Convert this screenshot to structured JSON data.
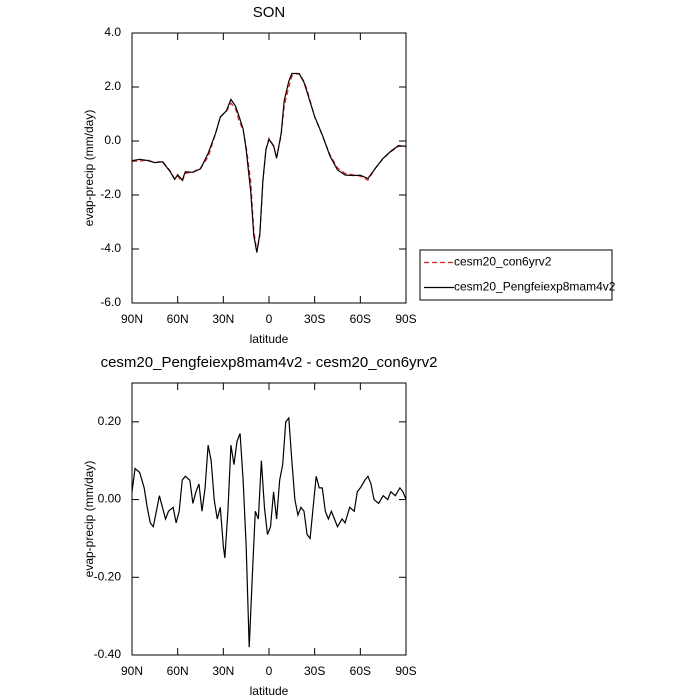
{
  "chart_data": [
    {
      "type": "line",
      "title": "SON",
      "xlabel": "latitude",
      "ylabel": "evap-precip (mm/day)",
      "x": [
        90,
        85,
        80,
        75,
        70,
        65,
        62,
        60,
        57,
        55,
        50,
        45,
        40,
        35,
        32,
        28,
        25,
        22,
        20,
        17,
        15,
        12,
        10,
        8,
        6,
        4,
        2,
        0,
        -3,
        -5,
        -8,
        -10,
        -13,
        -15,
        -18,
        -20,
        -23,
        -25,
        -30,
        -35,
        -40,
        -45,
        -50,
        -55,
        -60,
        -65,
        -70,
        -75,
        -80,
        -85,
        -90
      ],
      "series": [
        {
          "name": "cesm20_con6yrv2",
          "color": "#e41a1c",
          "line_style": "dashed",
          "values": [
            -0.75,
            -0.75,
            -0.7,
            -0.8,
            -0.75,
            -1.1,
            -1.4,
            -1.3,
            -1.5,
            -1.2,
            -1.15,
            -1.0,
            -0.6,
            0.3,
            0.9,
            1.1,
            1.4,
            1.2,
            0.8,
            0.4,
            -0.2,
            -1.5,
            -3.3,
            -4.1,
            -3.5,
            -1.5,
            -0.3,
            0.1,
            -0.2,
            -0.6,
            0.2,
            1.3,
            2.0,
            2.4,
            2.5,
            2.5,
            2.2,
            1.9,
            0.9,
            0.2,
            -0.5,
            -1.0,
            -1.2,
            -1.25,
            -1.3,
            -1.45,
            -1.0,
            -0.65,
            -0.4,
            -0.2,
            -0.2
          ]
        },
        {
          "name": "cesm20_Pengfeiexp8mam4v2",
          "color": "#000000",
          "line_style": "solid",
          "values": [
            -0.73,
            -0.68,
            -0.72,
            -0.8,
            -0.77,
            -1.13,
            -1.42,
            -1.25,
            -1.45,
            -1.14,
            -1.16,
            -1.03,
            -0.46,
            0.3,
            0.88,
            1.12,
            1.54,
            1.29,
            0.97,
            0.45,
            -0.32,
            -1.88,
            -3.5,
            -4.13,
            -3.42,
            -1.45,
            -0.32,
            0.06,
            -0.17,
            -0.64,
            0.29,
            1.5,
            2.21,
            2.5,
            2.5,
            2.48,
            2.17,
            1.81,
            0.9,
            0.23,
            -0.55,
            -1.07,
            -1.26,
            -1.28,
            -1.27,
            -1.39,
            -1.0,
            -0.64,
            -0.38,
            -0.17,
            -0.2
          ]
        }
      ],
      "xlim": [
        90,
        -90
      ],
      "xticks": [
        {
          "value": 90,
          "label": "90N"
        },
        {
          "value": 60,
          "label": "60N"
        },
        {
          "value": 30,
          "label": "30N"
        },
        0,
        {
          "value": -30,
          "label": "30S"
        },
        {
          "value": -60,
          "label": "60S"
        },
        {
          "value": -90,
          "label": "90S"
        }
      ],
      "ylim": [
        -6,
        4
      ],
      "yticks": [
        {
          "value": -6,
          "label": "-6.0"
        },
        {
          "value": -4,
          "label": "-4.0"
        },
        {
          "value": -2,
          "label": "-2.0"
        },
        {
          "value": 0,
          "label": "0.0"
        },
        {
          "value": 2,
          "label": "2.0"
        },
        {
          "value": 4,
          "label": "4.0"
        }
      ],
      "legend": "outside-right"
    },
    {
      "type": "line",
      "title": "cesm20_Pengfeiexp8mam4v2 - cesm20_con6yrv2",
      "xlabel": "latitude",
      "ylabel": "evap-precip (mm/day)",
      "x": [
        90,
        88,
        85,
        82,
        80,
        78,
        76,
        74,
        72,
        70,
        68,
        66,
        63,
        61,
        59,
        57,
        55,
        52,
        50,
        48,
        46,
        44,
        42,
        40,
        38,
        36,
        34,
        32,
        30,
        29,
        27,
        25,
        23,
        21,
        19,
        17,
        15,
        13,
        11,
        9,
        7,
        5,
        3,
        1,
        -1,
        -3,
        -5,
        -7,
        -9,
        -11,
        -13,
        -15,
        -17,
        -19,
        -21,
        -23,
        -25,
        -27,
        -29,
        -31,
        -33,
        -35,
        -37,
        -39,
        -41,
        -43,
        -45,
        -48,
        -50,
        -53,
        -56,
        -58,
        -60,
        -63,
        -65,
        -67,
        -69,
        -72,
        -75,
        -78,
        -80,
        -83,
        -86,
        -88,
        -90
      ],
      "series": [
        {
          "name": "cesm20_Pengfeiexp8mam4v2 - cesm20_con6yrv2",
          "color": "#000000",
          "line_style": "solid",
          "values": [
            0.02,
            0.08,
            0.07,
            0.03,
            -0.02,
            -0.06,
            -0.07,
            -0.03,
            0.01,
            -0.02,
            -0.05,
            -0.03,
            -0.02,
            -0.06,
            -0.03,
            0.05,
            0.06,
            0.05,
            -0.01,
            0.02,
            0.04,
            -0.03,
            0.03,
            0.14,
            0.1,
            0.0,
            -0.05,
            -0.02,
            -0.12,
            -0.15,
            -0.03,
            0.14,
            0.09,
            0.15,
            0.17,
            0.05,
            -0.12,
            -0.38,
            -0.2,
            -0.03,
            -0.05,
            0.1,
            -0.02,
            -0.09,
            -0.07,
            0.02,
            -0.05,
            0.05,
            0.09,
            0.2,
            0.21,
            0.1,
            0.0,
            -0.04,
            -0.02,
            -0.03,
            -0.09,
            -0.1,
            -0.02,
            0.06,
            0.03,
            0.03,
            -0.03,
            -0.05,
            -0.03,
            -0.05,
            -0.07,
            -0.05,
            -0.06,
            -0.02,
            -0.03,
            0.02,
            0.03,
            0.05,
            0.06,
            0.04,
            0.0,
            -0.01,
            0.01,
            0.0,
            0.02,
            0.01,
            0.03,
            0.02,
            0.0
          ]
        }
      ],
      "xlim": [
        90,
        -90
      ],
      "xticks": [
        {
          "value": 90,
          "label": "90N"
        },
        {
          "value": 60,
          "label": "60N"
        },
        {
          "value": 30,
          "label": "30N"
        },
        0,
        {
          "value": -30,
          "label": "30S"
        },
        {
          "value": -60,
          "label": "60S"
        },
        {
          "value": -90,
          "label": "90S"
        }
      ],
      "ylim": [
        -0.4,
        0.3
      ],
      "yticks": [
        {
          "value": -0.4,
          "label": "-0.40"
        },
        {
          "value": -0.2,
          "label": "-0.20"
        },
        {
          "value": 0,
          "label": "0.00"
        },
        {
          "value": 0.2,
          "label": "0.20"
        }
      ]
    }
  ]
}
